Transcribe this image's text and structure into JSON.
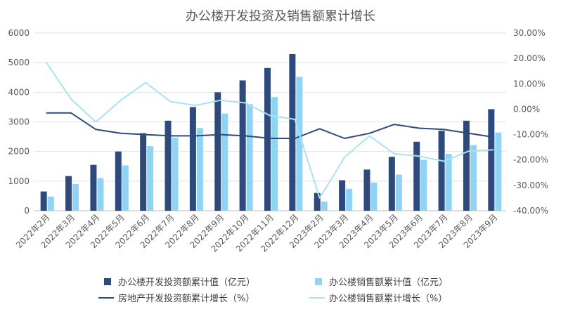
{
  "chart_data": {
    "type": "bar",
    "title": "办公楼开发投资及销售额累计增长",
    "categories": [
      "2022年2月",
      "2022年3月",
      "2022年4月",
      "2022年5月",
      "2022年6月",
      "2022年7月",
      "2022年8月",
      "2022年9月",
      "2022年10月",
      "2022年11月",
      "2022年12月",
      "2023年2月",
      "2023年3月",
      "2023年4月",
      "2023年5月",
      "2023年6月",
      "2023年7月",
      "2023年8月",
      "2023年9月"
    ],
    "left_axis": {
      "min": 0,
      "max": 6000,
      "ticks": [
        "0",
        "1000",
        "2000",
        "3000",
        "4000",
        "5000",
        "6000"
      ]
    },
    "right_axis": {
      "min": -40,
      "max": 30,
      "ticks": [
        "-40.00%",
        "-30.00%",
        "-20.00%",
        "-10.00%",
        "0.00%",
        "10.00%",
        "20.00%",
        "30.00%"
      ]
    },
    "series": [
      {
        "name": "办公楼开发投资额累计值（亿元）",
        "kind": "bar",
        "axis": "left",
        "color": "#2E4A7D",
        "values": [
          650,
          1170,
          1550,
          2000,
          2620,
          3040,
          3500,
          4000,
          4400,
          4820,
          5290,
          600,
          1030,
          1390,
          1820,
          2330,
          2700,
          3040,
          3430
        ]
      },
      {
        "name": "办公楼销售额累计值（亿元）",
        "kind": "bar",
        "axis": "left",
        "color": "#8FD3F5",
        "values": [
          480,
          900,
          1100,
          1530,
          2180,
          2470,
          2790,
          3280,
          3600,
          3840,
          4520,
          310,
          740,
          950,
          1220,
          1720,
          1920,
          2220,
          2640
        ]
      },
      {
        "name": "房地产开发投资额累计增长（%）",
        "kind": "line",
        "axis": "right",
        "color": "#2E4A7D",
        "values": [
          -1.5,
          -1.5,
          -8.0,
          -9.5,
          -10.0,
          -10.5,
          -10.5,
          -10.0,
          -10.5,
          -11.5,
          -11.5,
          -7.7,
          -11.5,
          -9.5,
          -6.0,
          -7.5,
          -8.0,
          -9.5,
          -11.0
        ]
      },
      {
        "name": "办公楼销售额累计增长（%）",
        "kind": "line",
        "axis": "right",
        "color": "#A9E2F3",
        "values": [
          18.5,
          4.0,
          -5.0,
          3.5,
          10.5,
          3.0,
          1.5,
          3.5,
          2.5,
          -2.5,
          -4.0,
          -35.0,
          -19.0,
          -10.5,
          -17.5,
          -18.5,
          -20.5,
          -16.5,
          -16.0
        ]
      }
    ],
    "legend_position": "bottom"
  }
}
